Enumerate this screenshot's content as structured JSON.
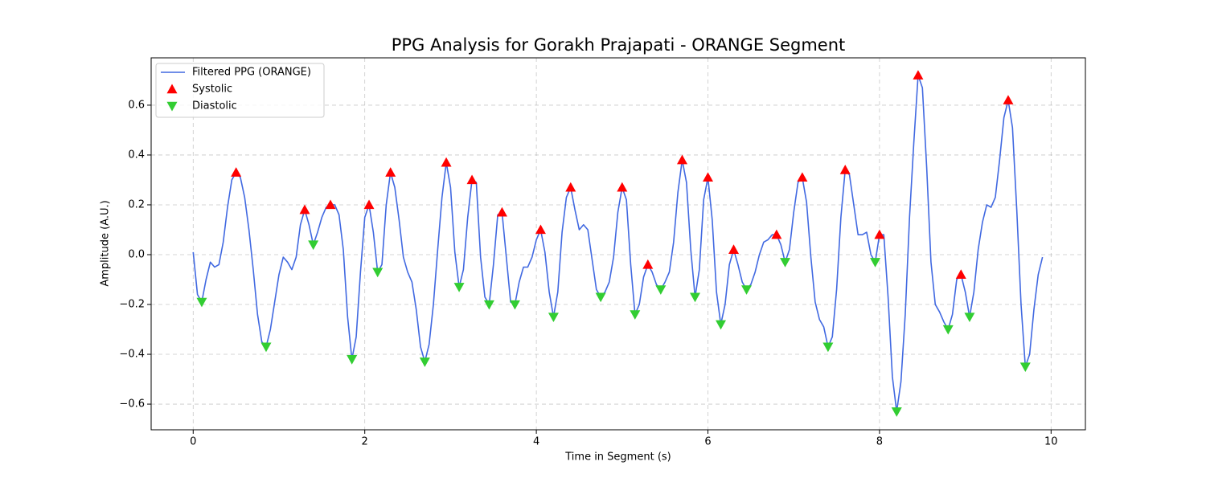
{
  "chart_data": {
    "type": "line",
    "title": "PPG Analysis for Gorakh Prajapati - ORANGE Segment",
    "xlabel": "Time in Segment (s)",
    "ylabel": "Amplitude (A.U.)",
    "xlim": [
      -0.49,
      10.4
    ],
    "ylim": [
      -0.703,
      0.79
    ],
    "xticks": [
      0,
      2,
      4,
      6,
      8,
      10
    ],
    "yticks": [
      {
        "value": -0.6,
        "label": "−0.6"
      },
      {
        "value": -0.4,
        "label": "−0.4"
      },
      {
        "value": -0.2,
        "label": "−0.2"
      },
      {
        "value": 0,
        "label": "0.0"
      },
      0.2,
      0.4,
      0.6
    ],
    "grid": true,
    "legend": "upper left",
    "series": [
      {
        "name": "Filtered PPG (ORANGE)",
        "color": "#4169e1",
        "type": "line",
        "x": [
          0,
          0.05,
          0.1,
          0.15,
          0.2,
          0.25,
          0.3,
          0.35,
          0.4,
          0.45,
          0.5,
          0.55,
          0.6,
          0.65,
          0.7,
          0.75,
          0.8,
          0.85,
          0.9,
          0.95,
          1,
          1.05,
          1.1,
          1.15,
          1.2,
          1.25,
          1.3,
          1.35,
          1.4,
          1.45,
          1.5,
          1.55,
          1.6,
          1.65,
          1.7,
          1.75,
          1.8,
          1.85,
          1.9,
          1.95,
          2,
          2.05,
          2.1,
          2.15,
          2.2,
          2.25,
          2.3,
          2.35,
          2.4,
          2.45,
          2.5,
          2.55,
          2.6,
          2.65,
          2.7,
          2.75,
          2.8,
          2.85,
          2.9,
          2.95,
          3,
          3.05,
          3.1,
          3.15,
          3.2,
          3.25,
          3.3,
          3.35,
          3.4,
          3.45,
          3.5,
          3.55,
          3.6,
          3.65,
          3.7,
          3.75,
          3.8,
          3.85,
          3.9,
          3.95,
          4,
          4.05,
          4.1,
          4.15,
          4.2,
          4.25,
          4.3,
          4.35,
          4.4,
          4.45,
          4.5,
          4.55,
          4.6,
          4.65,
          4.7,
          4.75,
          4.8,
          4.85,
          4.9,
          4.95,
          5,
          5.05,
          5.1,
          5.15,
          5.2,
          5.25,
          5.3,
          5.35,
          5.4,
          5.45,
          5.5,
          5.55,
          5.6,
          5.65,
          5.7,
          5.75,
          5.8,
          5.85,
          5.9,
          5.95,
          6,
          6.05,
          6.1,
          6.15,
          6.2,
          6.25,
          6.3,
          6.35,
          6.4,
          6.45,
          6.5,
          6.55,
          6.6,
          6.65,
          6.7,
          6.75,
          6.8,
          6.85,
          6.9,
          6.95,
          7,
          7.05,
          7.1,
          7.15,
          7.2,
          7.25,
          7.3,
          7.35,
          7.4,
          7.45,
          7.5,
          7.55,
          7.6,
          7.65,
          7.7,
          7.75,
          7.8,
          7.85,
          7.9,
          7.95,
          8,
          8.05,
          8.1,
          8.15,
          8.2,
          8.25,
          8.3,
          8.35,
          8.4,
          8.45,
          8.5,
          8.55,
          8.6,
          8.65,
          8.7,
          8.75,
          8.8,
          8.85,
          8.9,
          8.95,
          9,
          9.05,
          9.1,
          9.15,
          9.2,
          9.25,
          9.3,
          9.35,
          9.4,
          9.45,
          9.5,
          9.55,
          9.6,
          9.65,
          9.7,
          9.75,
          9.8,
          9.85,
          9.9
        ],
        "values": [
          0.01,
          -0.16,
          -0.19,
          -0.1,
          -0.03,
          -0.05,
          -0.04,
          0.05,
          0.19,
          0.3,
          0.33,
          0.31,
          0.23,
          0.1,
          -0.06,
          -0.24,
          -0.35,
          -0.37,
          -0.3,
          -0.19,
          -0.08,
          -0.01,
          -0.03,
          -0.06,
          -0.01,
          0.12,
          0.18,
          0.12,
          0.04,
          0.09,
          0.15,
          0.19,
          0.2,
          0.2,
          0.16,
          0.02,
          -0.25,
          -0.42,
          -0.33,
          -0.07,
          0.15,
          0.2,
          0.09,
          -0.07,
          -0.04,
          0.2,
          0.33,
          0.27,
          0.14,
          -0.01,
          -0.07,
          -0.11,
          -0.22,
          -0.37,
          -0.43,
          -0.36,
          -0.2,
          0.02,
          0.23,
          0.37,
          0.27,
          0.01,
          -0.13,
          -0.06,
          0.15,
          0.3,
          0.29,
          -0.01,
          -0.17,
          -0.2,
          -0.04,
          0.16,
          0.17,
          -0.01,
          -0.19,
          -0.2,
          -0.11,
          -0.05,
          -0.05,
          -0.01,
          0.06,
          0.1,
          0.01,
          -0.15,
          -0.25,
          -0.15,
          0.09,
          0.23,
          0.27,
          0.18,
          0.1,
          0.12,
          0.1,
          -0.02,
          -0.14,
          -0.17,
          -0.15,
          -0.11,
          -0.01,
          0.17,
          0.27,
          0.22,
          -0.04,
          -0.24,
          -0.2,
          -0.09,
          -0.04,
          -0.07,
          -0.12,
          -0.14,
          -0.11,
          -0.07,
          0.05,
          0.25,
          0.38,
          0.29,
          0.02,
          -0.17,
          -0.06,
          0.22,
          0.31,
          0.14,
          -0.15,
          -0.28,
          -0.2,
          -0.04,
          0.02,
          -0.04,
          -0.11,
          -0.14,
          -0.12,
          -0.07,
          0,
          0.05,
          0.06,
          0.08,
          0.08,
          0.04,
          -0.03,
          0.02,
          0.17,
          0.29,
          0.31,
          0.21,
          -0.01,
          -0.19,
          -0.26,
          -0.29,
          -0.37,
          -0.33,
          -0.14,
          0.15,
          0.34,
          0.32,
          0.2,
          0.08,
          0.08,
          0.09,
          0,
          -0.03,
          0.08,
          0.08,
          -0.17,
          -0.49,
          -0.63,
          -0.51,
          -0.24,
          0.15,
          0.45,
          0.72,
          0.67,
          0.35,
          -0.03,
          -0.2,
          -0.23,
          -0.27,
          -0.3,
          -0.24,
          -0.1,
          -0.08,
          -0.15,
          -0.25,
          -0.15,
          0.02,
          0.13,
          0.2,
          0.19,
          0.23,
          0.38,
          0.55,
          0.62,
          0.51,
          0.18,
          -0.2,
          -0.45,
          -0.4,
          -0.22,
          -0.08,
          -0.01
        ]
      },
      {
        "name": "Systolic",
        "color": "#ff0000",
        "type": "scatter",
        "marker": "triangle-up",
        "x": [
          0.5,
          1.3,
          1.6,
          2.05,
          2.3,
          2.95,
          3.25,
          3.6,
          4.05,
          4.4,
          5,
          5.3,
          5.7,
          6,
          6.3,
          6.8,
          7.1,
          7.6,
          8,
          8.45,
          8.95,
          9.5
        ],
        "values": [
          0.33,
          0.18,
          0.2,
          0.2,
          0.33,
          0.37,
          0.3,
          0.17,
          0.1,
          0.27,
          0.27,
          -0.04,
          0.38,
          0.31,
          0.02,
          0.08,
          0.31,
          0.34,
          0.08,
          0.72,
          -0.08,
          0.62
        ]
      },
      {
        "name": "Diastolic",
        "color": "#32cd32",
        "type": "scatter",
        "marker": "triangle-down",
        "x": [
          0.1,
          0.85,
          1.4,
          1.85,
          2.15,
          2.7,
          3.1,
          3.45,
          3.75,
          4.2,
          4.75,
          5.15,
          5.45,
          5.85,
          6.15,
          6.45,
          6.9,
          7.4,
          7.95,
          8.2,
          8.8,
          9.05,
          9.7
        ],
        "values": [
          -0.19,
          -0.37,
          0.04,
          -0.42,
          -0.07,
          -0.43,
          -0.13,
          -0.2,
          -0.2,
          -0.25,
          -0.17,
          -0.24,
          -0.14,
          -0.17,
          -0.28,
          -0.14,
          -0.03,
          -0.37,
          -0.03,
          -0.63,
          -0.3,
          -0.25,
          -0.45
        ]
      }
    ]
  }
}
